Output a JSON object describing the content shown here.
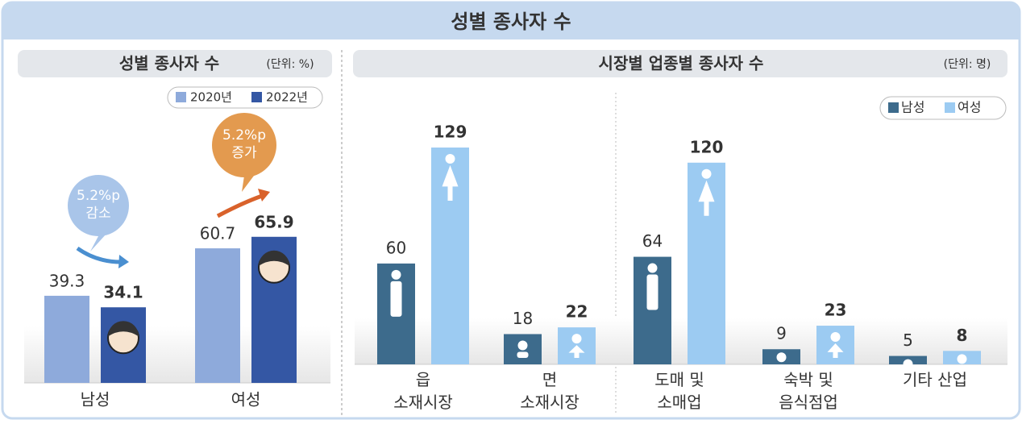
{
  "title": "성별 종사자 수",
  "chart_data": [
    {
      "type": "bar",
      "title": "성별 종사자 수",
      "unit": "(단위: %)",
      "categories": [
        "남성",
        "여성"
      ],
      "series": [
        {
          "name": "2020년",
          "color": "#8eaadb",
          "values": [
            39.3,
            60.7
          ]
        },
        {
          "name": "2022년",
          "color": "#3457a4",
          "values": [
            34.1,
            65.9
          ]
        }
      ],
      "annotations": [
        "5.2%p\n감소",
        "5.2%p\n증가"
      ]
    },
    {
      "type": "bar",
      "title": "시장별 업종별 종사자 수",
      "unit": "(단위: 명)",
      "categories": [
        "읍\n소재시장",
        "면\n소재시장",
        "도매 및\n소매업",
        "숙박 및\n음식점업",
        "기타 산업"
      ],
      "series": [
        {
          "name": "남성",
          "color": "#3d6b8c",
          "values": [
            60,
            18,
            64,
            9,
            5
          ]
        },
        {
          "name": "여성",
          "color": "#9ccbf2",
          "values": [
            129,
            22,
            120,
            23,
            8
          ]
        }
      ]
    }
  ]
}
